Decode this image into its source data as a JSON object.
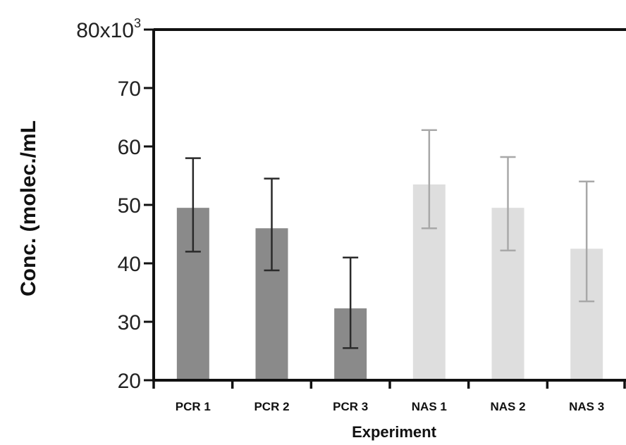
{
  "chart_data": {
    "type": "bar",
    "ylabel": "Conc. (molec./mL",
    "xlabel": "Experiment",
    "ylim": [
      20,
      80
    ],
    "ytick_values": [
      20,
      30,
      40,
      50,
      60,
      70,
      80
    ],
    "ytick_labels": [
      "20",
      "30",
      "40",
      "50",
      "60",
      "70",
      "80x10"
    ],
    "ytick_top_exponent": "3",
    "categories": [
      "PCR 1",
      "PCR 2",
      "PCR 3",
      "NAS 1",
      "NAS 2",
      "NAS 3"
    ],
    "values": [
      49.5,
      46,
      32.3,
      53.5,
      49.5,
      42.5
    ],
    "error_low": [
      42,
      38.8,
      25.5,
      46,
      42.2,
      33.5
    ],
    "error_high": [
      58,
      54.5,
      41,
      62.8,
      58.2,
      54
    ],
    "colors": {
      "pcr_fill": "#8a8a8a",
      "nas_fill": "#dedede",
      "pcr_error": "#2a2a2a",
      "nas_error": "#a8a8a8"
    },
    "grid": false
  }
}
